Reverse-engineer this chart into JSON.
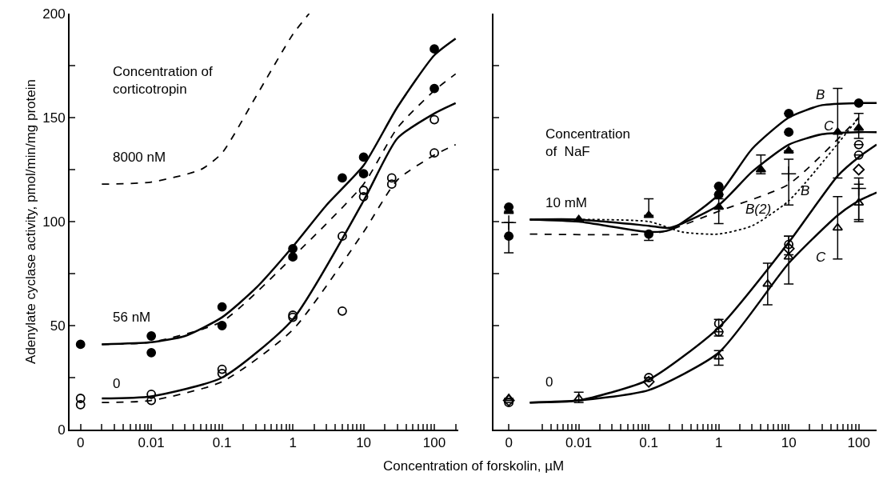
{
  "chart_data": [
    {
      "type": "scatter",
      "ylabel": "Adenylate cyclase activity, pmol/min/mg protein",
      "xlabel": "Concentration of forskolin, µM",
      "log": "x",
      "xlim": [
        0.0007,
        220
      ],
      "ylim": [
        0,
        200
      ],
      "xticks": [
        {
          "value": 0.001,
          "label": "0"
        },
        {
          "value": 0.002,
          "label": null
        },
        {
          "value": 0.003,
          "label": null
        },
        {
          "value": 0.004,
          "label": null
        },
        {
          "value": 0.005,
          "label": null
        },
        {
          "value": 0.006,
          "label": null
        },
        {
          "value": 0.007,
          "label": null
        },
        {
          "value": 0.008,
          "label": null
        },
        {
          "value": 0.009,
          "label": null
        },
        0.01,
        {
          "value": 0.02,
          "label": null
        },
        {
          "value": 0.03,
          "label": null
        },
        {
          "value": 0.04,
          "label": null
        },
        {
          "value": 0.05,
          "label": null
        },
        {
          "value": 0.06,
          "label": null
        },
        {
          "value": 0.07,
          "label": null
        },
        {
          "value": 0.08,
          "label": null
        },
        {
          "value": 0.09,
          "label": null
        },
        0.1,
        {
          "value": 0.2,
          "label": null
        },
        {
          "value": 0.3,
          "label": null
        },
        {
          "value": 0.4,
          "label": null
        },
        {
          "value": 0.5,
          "label": null
        },
        {
          "value": 0.6,
          "label": null
        },
        {
          "value": 0.7,
          "label": null
        },
        {
          "value": 0.8,
          "label": null
        },
        {
          "value": 0.9,
          "label": null
        },
        1,
        {
          "value": 2,
          "label": null
        },
        {
          "value": 3,
          "label": null
        },
        {
          "value": 4,
          "label": null
        },
        {
          "value": 5,
          "label": null
        },
        {
          "value": 6,
          "label": null
        },
        {
          "value": 7,
          "label": null
        },
        {
          "value": 8,
          "label": null
        },
        {
          "value": 9,
          "label": null
        },
        10,
        {
          "value": 20,
          "label": null
        },
        {
          "value": 30,
          "label": null
        },
        {
          "value": 40,
          "label": null
        },
        {
          "value": 50,
          "label": null
        },
        {
          "value": 60,
          "label": null
        },
        {
          "value": 70,
          "label": null
        },
        {
          "value": 80,
          "label": null
        },
        {
          "value": 90,
          "label": null
        },
        100,
        {
          "value": 200,
          "label": null
        }
      ],
      "yticks": [
        0,
        {
          "value": 25,
          "label": null
        },
        50,
        {
          "value": 75,
          "label": null
        },
        100,
        {
          "value": 125,
          "label": null
        },
        150,
        {
          "value": 175,
          "label": null
        },
        200
      ],
      "series": [
        {
          "type": "line",
          "line_style": "dashed",
          "color": "#000000",
          "x": [
            0.002,
            0.01,
            0.05,
            0.1,
            0.3,
            1,
            1.7
          ],
          "values": [
            118,
            119,
            125,
            133,
            160,
            190,
            200
          ]
        },
        {
          "type": "line",
          "line_style": "solid",
          "color": "#000000",
          "x": [
            0.002,
            0.01,
            0.03,
            0.1,
            0.3,
            1,
            3,
            10,
            30,
            100,
            200
          ],
          "values": [
            41,
            42,
            45,
            54,
            68,
            88,
            108,
            127,
            155,
            180,
            188
          ]
        },
        {
          "type": "line",
          "line_style": "dashed",
          "color": "#000000",
          "x": [
            0.002,
            0.01,
            0.1,
            1,
            10,
            30,
            100,
            200
          ],
          "values": [
            41,
            42,
            52,
            83,
            118,
            145,
            163,
            171
          ]
        },
        {
          "type": "line",
          "line_style": "solid",
          "color": "#000000",
          "x": [
            0.002,
            0.01,
            0.1,
            1,
            10,
            30,
            100,
            200
          ],
          "values": [
            15,
            16,
            25,
            53,
            110,
            140,
            152,
            157
          ]
        },
        {
          "type": "line",
          "line_style": "dashed",
          "color": "#000000",
          "x": [
            0.002,
            0.01,
            0.1,
            1,
            10,
            30,
            100,
            200
          ],
          "values": [
            13,
            14,
            23,
            48,
            95,
            120,
            132,
            137
          ]
        },
        {
          "type": "scatter",
          "marker": "circle",
          "color": "#000000",
          "x": [
            0.001,
            0.01,
            0.01,
            0.1,
            0.1,
            1,
            1,
            5,
            10,
            10,
            100,
            100
          ],
          "values": [
            41,
            45,
            37,
            59,
            50,
            87,
            83,
            121,
            131,
            123,
            183,
            164
          ]
        },
        {
          "type": "scatter",
          "marker": "circle-open",
          "color": "#000000",
          "x": [
            0.001,
            0.001,
            0.01,
            0.01,
            0.1,
            0.1,
            1,
            1,
            5,
            5,
            10,
            10,
            25,
            25,
            100,
            100
          ],
          "values": [
            15,
            12,
            17,
            14,
            29,
            27,
            55,
            54,
            93,
            57,
            115,
            112,
            121,
            118,
            149,
            133
          ]
        }
      ],
      "annotations": [
        "Concentration of\ncorticotropin",
        "8000 nM",
        "56 nM",
        "0"
      ]
    },
    {
      "type": "scatter",
      "log": "x",
      "tick_labels": "x",
      "xlim": [
        0.0006,
        180
      ],
      "ylim": [
        0,
        200
      ],
      "xticks": [
        {
          "value": 0.001,
          "label": "0"
        },
        {
          "value": 0.003,
          "label": null
        },
        {
          "value": 0.004,
          "label": null
        },
        {
          "value": 0.005,
          "label": null
        },
        {
          "value": 0.006,
          "label": null
        },
        {
          "value": 0.007,
          "label": null
        },
        {
          "value": 0.008,
          "label": null
        },
        {
          "value": 0.009,
          "label": null
        },
        0.01,
        {
          "value": 0.02,
          "label": null
        },
        {
          "value": 0.03,
          "label": null
        },
        {
          "value": 0.04,
          "label": null
        },
        {
          "value": 0.05,
          "label": null
        },
        {
          "value": 0.06,
          "label": null
        },
        {
          "value": 0.07,
          "label": null
        },
        {
          "value": 0.08,
          "label": null
        },
        {
          "value": 0.09,
          "label": null
        },
        0.1,
        {
          "value": 0.2,
          "label": null
        },
        {
          "value": 0.3,
          "label": null
        },
        {
          "value": 0.4,
          "label": null
        },
        {
          "value": 0.5,
          "label": null
        },
        {
          "value": 0.6,
          "label": null
        },
        {
          "value": 0.7,
          "label": null
        },
        {
          "value": 0.8,
          "label": null
        },
        {
          "value": 0.9,
          "label": null
        },
        1,
        {
          "value": 2,
          "label": null
        },
        {
          "value": 3,
          "label": null
        },
        {
          "value": 4,
          "label": null
        },
        {
          "value": 5,
          "label": null
        },
        {
          "value": 6,
          "label": null
        },
        {
          "value": 7,
          "label": null
        },
        {
          "value": 8,
          "label": null
        },
        {
          "value": 9,
          "label": null
        },
        10,
        {
          "value": 20,
          "label": null
        },
        {
          "value": 30,
          "label": null
        },
        {
          "value": 40,
          "label": null
        },
        {
          "value": 50,
          "label": null
        },
        {
          "value": 60,
          "label": null
        },
        {
          "value": 70,
          "label": null
        },
        {
          "value": 80,
          "label": null
        },
        {
          "value": 90,
          "label": null
        },
        100
      ],
      "yticks": [
        {
          "value": 0,
          "label": null
        },
        {
          "value": 25,
          "label": null
        },
        {
          "value": 50,
          "label": null
        },
        {
          "value": 75,
          "label": null
        },
        {
          "value": 100,
          "label": null
        },
        {
          "value": 125,
          "label": null
        },
        {
          "value": 150,
          "label": null
        },
        {
          "value": 175,
          "label": null
        },
        {
          "value": 200,
          "label": null
        }
      ],
      "series": [
        {
          "type": "line",
          "line_style": "solid",
          "color": "#000000",
          "x": [
            0.002,
            0.01,
            0.1,
            0.2,
            1,
            3,
            10,
            30,
            100,
            180
          ],
          "values": [
            101,
            100,
            95,
            96,
            113,
            135,
            150,
            156,
            157,
            157
          ]
        },
        {
          "type": "line",
          "line_style": "solid",
          "color": "#000000",
          "x": [
            0.002,
            0.01,
            0.1,
            0.2,
            1,
            3,
            10,
            30,
            100,
            180
          ],
          "values": [
            101,
            101,
            98,
            97,
            108,
            124,
            137,
            142,
            143,
            143
          ]
        },
        {
          "type": "line",
          "line_style": "dashed",
          "color": "#000000",
          "x": [
            0.002,
            0.1,
            0.2,
            1,
            10,
            100
          ],
          "values": [
            94,
            94,
            96,
            105,
            118,
            150
          ]
        },
        {
          "type": "line",
          "line_style": "dotted",
          "color": "#000000",
          "x": [
            0.002,
            0.1,
            0.3,
            1,
            3,
            10,
            100
          ],
          "values": [
            101,
            100,
            95,
            94,
            98,
            110,
            150
          ]
        },
        {
          "type": "line",
          "line_style": "solid",
          "color": "#000000",
          "x": [
            0.002,
            0.01,
            0.1,
            1,
            10,
            50,
            100,
            180
          ],
          "values": [
            13,
            14,
            24,
            49,
            90,
            122,
            131,
            137
          ]
        },
        {
          "type": "line",
          "line_style": "solid",
          "color": "#000000",
          "x": [
            0.002,
            0.01,
            0.1,
            1,
            10,
            50,
            100,
            180
          ],
          "values": [
            13,
            14,
            19,
            37,
            80,
            103,
            110,
            114
          ]
        },
        {
          "type": "scatter",
          "marker": "circle",
          "color": "#000000",
          "x": [
            0.001,
            0.001,
            0.1,
            1,
            1,
            10,
            10,
            100
          ],
          "values": [
            107,
            93,
            94,
            117,
            113,
            152,
            143,
            157
          ],
          "errors": [
            null,
            null,
            [
              91,
              95
            ],
            null,
            null,
            null,
            null,
            null
          ]
        },
        {
          "type": "scatter",
          "marker": "triangle",
          "color": "#000000",
          "x": [
            0.001,
            0.01,
            0.1,
            1,
            4,
            10,
            50,
            100
          ],
          "values": [
            105,
            101,
            103,
            107,
            125,
            134,
            143,
            145
          ],
          "errors": [
            null,
            null,
            [
              103,
              111
            ],
            [
              99,
              111
            ],
            [
              123,
              132
            ],
            null,
            [
              121,
              164
            ],
            [
              140,
              152
            ]
          ]
        },
        {
          "marker": "cross",
          "color": "#000000",
          "x": [
            0.001,
            10,
            100
          ],
          "values": [
            99.5,
            123,
            116
          ],
          "errors": [
            [
              85,
              99.5
            ],
            [
              108,
              130
            ],
            [
              101,
              121
            ]
          ]
        },
        {
          "type": "scatter",
          "marker": "circle-open",
          "color": "#000000",
          "x": [
            0.001,
            0.1,
            1,
            1,
            10,
            100,
            100
          ],
          "values": [
            13,
            25,
            51,
            47,
            89,
            137,
            132
          ],
          "errors": [
            null,
            null,
            [
              45,
              53
            ],
            null,
            [
              84,
              93
            ],
            null,
            null
          ]
        },
        {
          "type": "scatter",
          "marker": "diamond-open",
          "color": "#000000",
          "x": [
            0.001,
            0.1,
            10,
            100
          ],
          "values": [
            14,
            23,
            87,
            125
          ]
        },
        {
          "type": "scatter",
          "marker": "triangle-open",
          "color": "#000000",
          "x": [
            0.001,
            0.01,
            1,
            5,
            10,
            50,
            100
          ],
          "values": [
            15,
            15,
            35,
            70,
            83,
            97,
            109
          ],
          "errors": [
            null,
            [
              13,
              18
            ],
            [
              31,
              38
            ],
            [
              60,
              80
            ],
            [
              70,
              93
            ],
            [
              82,
              112
            ],
            [
              100,
              118
            ]
          ]
        }
      ],
      "annotations": [
        "Concentration\nof  NaF",
        "10 mM",
        "0",
        "B",
        "C",
        "B(2)",
        "B",
        "C"
      ]
    }
  ]
}
